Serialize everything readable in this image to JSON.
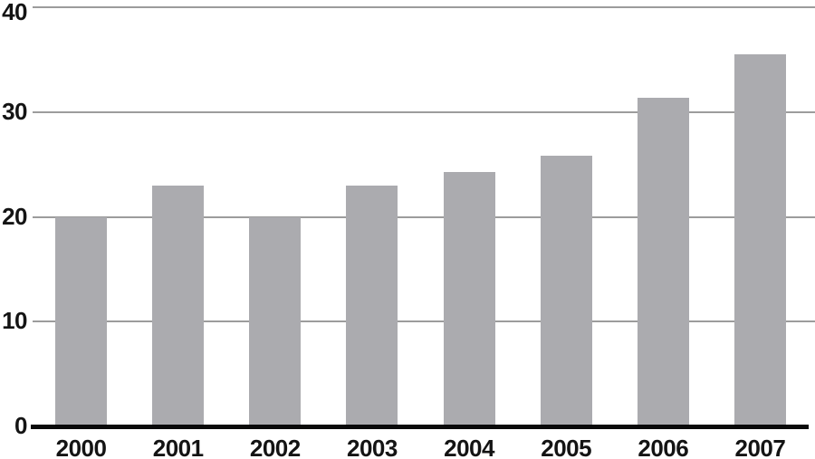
{
  "chart_data": {
    "type": "bar",
    "title": "",
    "xlabel": "",
    "ylabel": "",
    "categories": [
      "2000",
      "2001",
      "2002",
      "2003",
      "2004",
      "2005",
      "2006",
      "2007"
    ],
    "values": [
      20,
      23,
      20,
      23,
      24.3,
      25.8,
      31.4,
      35.5
    ],
    "ylim": [
      0,
      40
    ],
    "yticks": [
      0,
      10,
      20,
      30,
      40
    ],
    "grid": "horizontal-only",
    "legend": null,
    "colors": {
      "bar": "#ABABAF",
      "gridline": "#9C9C9C",
      "axis": "#0A0A0A",
      "label": "#141414",
      "background": "#FFFFFF"
    }
  }
}
